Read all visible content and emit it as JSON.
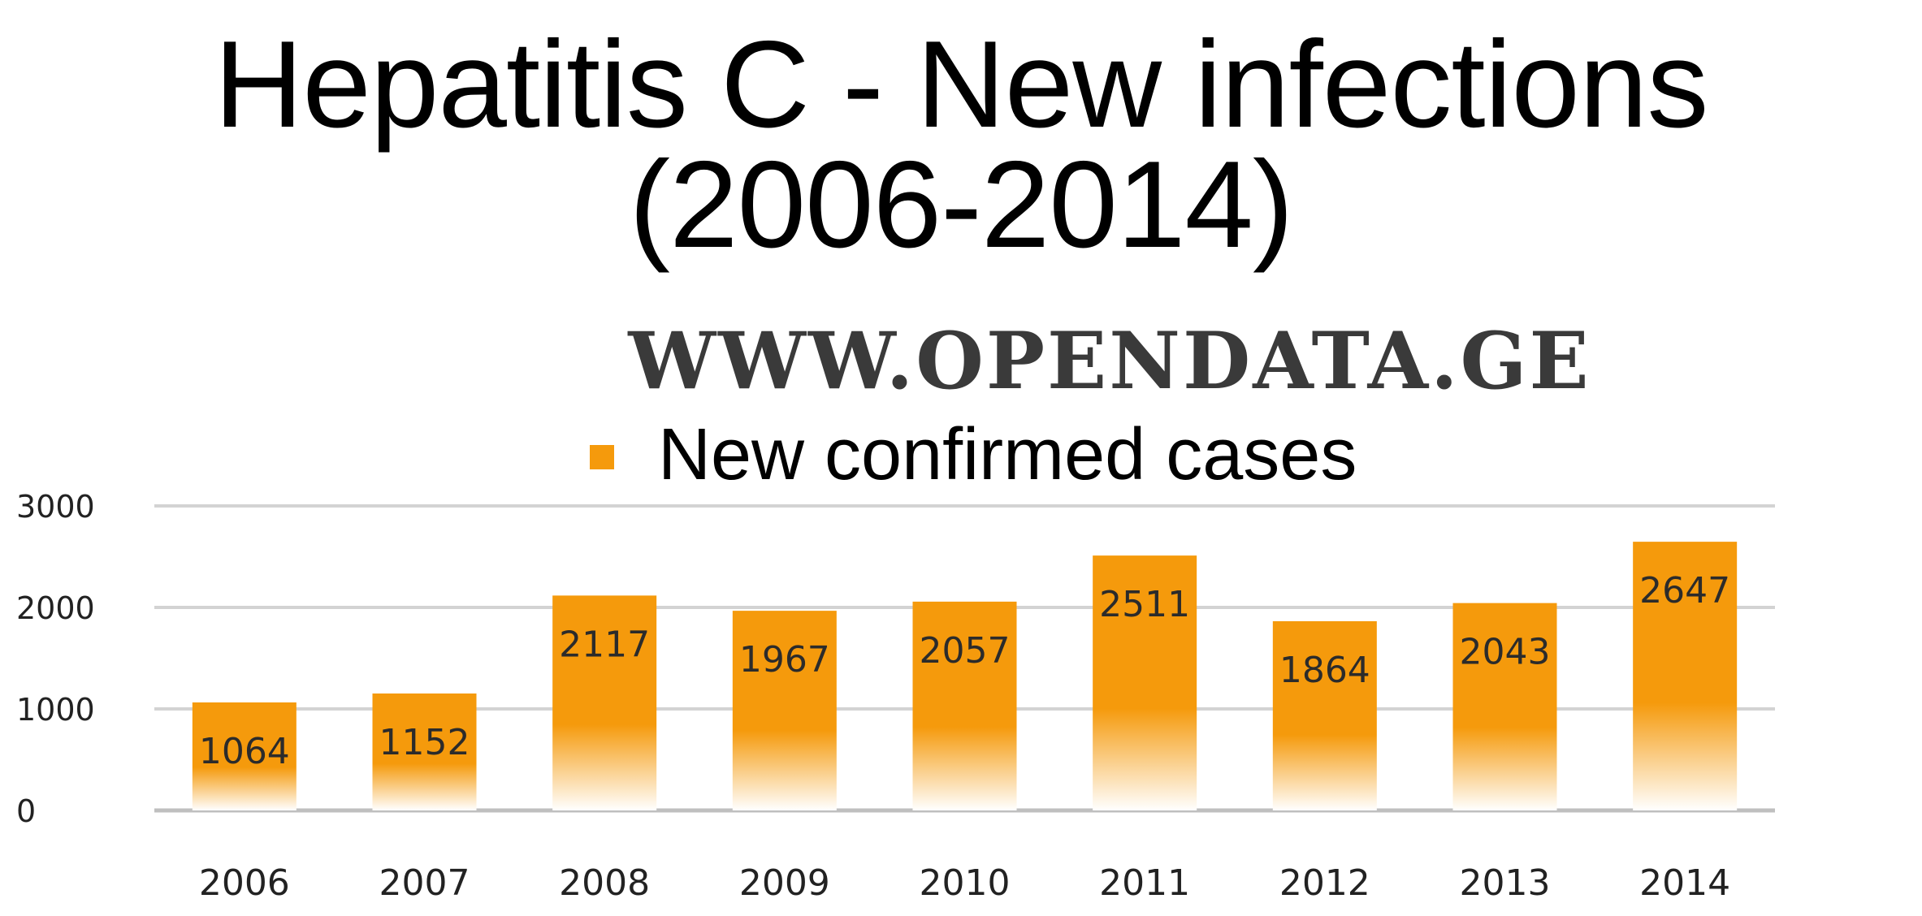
{
  "chart_data": {
    "type": "bar",
    "title": [
      "Hepatitis C - New infections",
      "(2006-2014)"
    ],
    "watermark": "WWW.OPENDATA.GE",
    "categories": [
      "2006",
      "2007",
      "2008",
      "2009",
      "2010",
      "2011",
      "2012",
      "2013",
      "2014"
    ],
    "series": [
      {
        "name": "New confirmed cases",
        "values": [
          1064,
          1152,
          2117,
          1967,
          2057,
          2511,
          1864,
          2043,
          2647
        ]
      }
    ],
    "data_labels": [
      "1064",
      "1152",
      "2117",
      "1967",
      "2057",
      "2511",
      "1864",
      "2043",
      "2647"
    ],
    "y_ticks": [
      "0",
      "1000",
      "2000",
      "3000"
    ],
    "ylim": [
      0,
      3000
    ],
    "grid": true,
    "legend_position": "top-center",
    "colors": {
      "bar_top": "#F59A0C",
      "bar_bottom": "#FFFFFF",
      "grid": "#D3D3D3",
      "watermark": "#3A3A3A"
    }
  }
}
